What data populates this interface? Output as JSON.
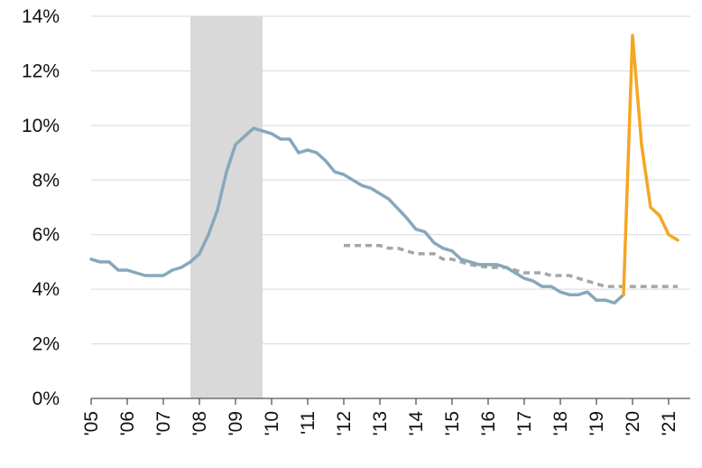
{
  "chart_data": {
    "type": "line",
    "title": "",
    "xlabel": "",
    "ylabel": "",
    "ylim": [
      0,
      14
    ],
    "xlim": [
      2005.0,
      2021.6
    ],
    "grid": "horizontal",
    "legend": "none",
    "y_ticks": [
      {
        "value": 0,
        "label": "0%"
      },
      {
        "value": 2,
        "label": "2%"
      },
      {
        "value": 4,
        "label": "4%"
      },
      {
        "value": 6,
        "label": "6%"
      },
      {
        "value": 8,
        "label": "8%"
      },
      {
        "value": 10,
        "label": "10%"
      },
      {
        "value": 12,
        "label": "12%"
      },
      {
        "value": 14,
        "label": "14%"
      }
    ],
    "x_ticks": [
      {
        "value": 2005,
        "label": "'05"
      },
      {
        "value": 2006,
        "label": "'06"
      },
      {
        "value": 2007,
        "label": "'07"
      },
      {
        "value": 2008,
        "label": "'08"
      },
      {
        "value": 2009,
        "label": "'09"
      },
      {
        "value": 2010,
        "label": "'10"
      },
      {
        "value": 2011,
        "label": "'11"
      },
      {
        "value": 2012,
        "label": "'12"
      },
      {
        "value": 2013,
        "label": "'13"
      },
      {
        "value": 2014,
        "label": "'14"
      },
      {
        "value": 2015,
        "label": "'15"
      },
      {
        "value": 2016,
        "label": "'16"
      },
      {
        "value": 2017,
        "label": "'17"
      },
      {
        "value": 2018,
        "label": "'18"
      },
      {
        "value": 2019,
        "label": "'19"
      },
      {
        "value": 2020,
        "label": "'20"
      },
      {
        "value": 2021,
        "label": "'21"
      }
    ],
    "recession_band": {
      "start": 2007.75,
      "end": 2009.75,
      "color": "#d9d9d9"
    },
    "series": [
      {
        "style": "solid",
        "color": "#86a8ba",
        "points": [
          [
            2005.0,
            5.1
          ],
          [
            2005.25,
            5.0
          ],
          [
            2005.5,
            5.0
          ],
          [
            2005.75,
            4.7
          ],
          [
            2006.0,
            4.7
          ],
          [
            2006.25,
            4.6
          ],
          [
            2006.5,
            4.5
          ],
          [
            2006.75,
            4.5
          ],
          [
            2007.0,
            4.5
          ],
          [
            2007.25,
            4.7
          ],
          [
            2007.5,
            4.8
          ],
          [
            2007.75,
            5.0
          ],
          [
            2008.0,
            5.3
          ],
          [
            2008.25,
            6.0
          ],
          [
            2008.5,
            6.9
          ],
          [
            2008.75,
            8.3
          ],
          [
            2009.0,
            9.3
          ],
          [
            2009.25,
            9.6
          ],
          [
            2009.5,
            9.9
          ],
          [
            2009.75,
            9.8
          ],
          [
            2010.0,
            9.7
          ],
          [
            2010.25,
            9.5
          ],
          [
            2010.5,
            9.5
          ],
          [
            2010.75,
            9.0
          ],
          [
            2011.0,
            9.1
          ],
          [
            2011.25,
            9.0
          ],
          [
            2011.5,
            8.7
          ],
          [
            2011.75,
            8.3
          ],
          [
            2012.0,
            8.2
          ],
          [
            2012.25,
            8.0
          ],
          [
            2012.5,
            7.8
          ],
          [
            2012.75,
            7.7
          ],
          [
            2013.0,
            7.5
          ],
          [
            2013.25,
            7.3
          ],
          [
            2013.5,
            6.95
          ],
          [
            2013.75,
            6.6
          ],
          [
            2014.0,
            6.2
          ],
          [
            2014.25,
            6.1
          ],
          [
            2014.5,
            5.7
          ],
          [
            2014.75,
            5.5
          ],
          [
            2015.0,
            5.4
          ],
          [
            2015.25,
            5.1
          ],
          [
            2015.5,
            5.0
          ],
          [
            2015.75,
            4.9
          ],
          [
            2016.0,
            4.9
          ],
          [
            2016.25,
            4.9
          ],
          [
            2016.5,
            4.8
          ],
          [
            2016.75,
            4.6
          ],
          [
            2017.0,
            4.4
          ],
          [
            2017.25,
            4.3
          ],
          [
            2017.5,
            4.1
          ],
          [
            2017.75,
            4.1
          ],
          [
            2018.0,
            3.9
          ],
          [
            2018.25,
            3.8
          ],
          [
            2018.5,
            3.8
          ],
          [
            2018.75,
            3.9
          ],
          [
            2019.0,
            3.6
          ],
          [
            2019.25,
            3.6
          ],
          [
            2019.5,
            3.5
          ],
          [
            2019.75,
            3.8
          ]
        ]
      },
      {
        "style": "solid",
        "color": "#f5a623",
        "points": [
          [
            2019.75,
            3.8
          ],
          [
            2020.0,
            13.3
          ],
          [
            2020.25,
            9.3
          ],
          [
            2020.5,
            7.0
          ],
          [
            2020.75,
            6.7
          ],
          [
            2021.0,
            6.0
          ],
          [
            2021.25,
            5.8
          ]
        ]
      },
      {
        "style": "dashed",
        "color": "#a6a6a6",
        "points": [
          [
            2012.0,
            5.6
          ],
          [
            2012.5,
            5.6
          ],
          [
            2013.0,
            5.6
          ],
          [
            2013.25,
            5.5
          ],
          [
            2013.5,
            5.5
          ],
          [
            2014.0,
            5.3
          ],
          [
            2014.5,
            5.3
          ],
          [
            2014.75,
            5.1
          ],
          [
            2015.0,
            5.1
          ],
          [
            2015.5,
            4.9
          ],
          [
            2016.0,
            4.8
          ],
          [
            2016.5,
            4.8
          ],
          [
            2017.0,
            4.6
          ],
          [
            2017.5,
            4.6
          ],
          [
            2017.75,
            4.5
          ],
          [
            2018.25,
            4.5
          ],
          [
            2018.75,
            4.3
          ],
          [
            2019.25,
            4.1
          ],
          [
            2019.75,
            4.1
          ],
          [
            2020.25,
            4.1
          ],
          [
            2021.25,
            4.1
          ]
        ]
      }
    ]
  }
}
